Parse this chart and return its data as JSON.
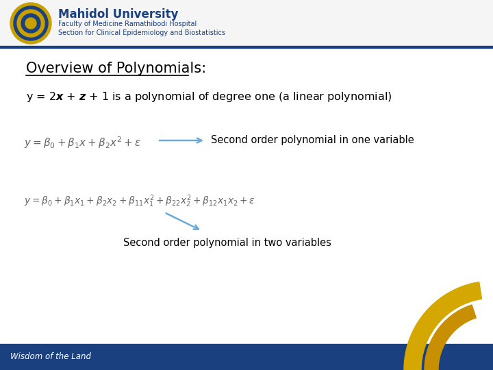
{
  "bg_color": "#ffffff",
  "footer_bar_color": "#1a4080",
  "header_text_main": "Mahidol University",
  "header_text_sub1": "Faculty of Medicine Ramathibodi Hospital",
  "header_text_sub2": "Section for Clinical Epidemiology and Biostatistics",
  "title": "Overview of Polynomials:",
  "eq1_latex": "$y = \\beta_0 + \\beta_1 x + \\beta_2 x^2 + \\varepsilon$",
  "eq1_label": "Second order polynomial in one variable",
  "eq2_latex": "$y = \\beta_0 + \\beta_1 x_1 + \\beta_2 x_2 + \\beta_{11} x_1^2 + \\beta_{22} x_2^2 + \\beta_{12} x_1 x_2 + \\varepsilon$",
  "eq2_label": "Second order polynomial in two variables",
  "footer_text": "Wisdom of the Land",
  "arrow_color": "#6aaad4",
  "header_main_color": "#1a4080",
  "header_sub_color": "#1a4080",
  "gold_color": "#d4a800",
  "gold_color2": "#c89000"
}
